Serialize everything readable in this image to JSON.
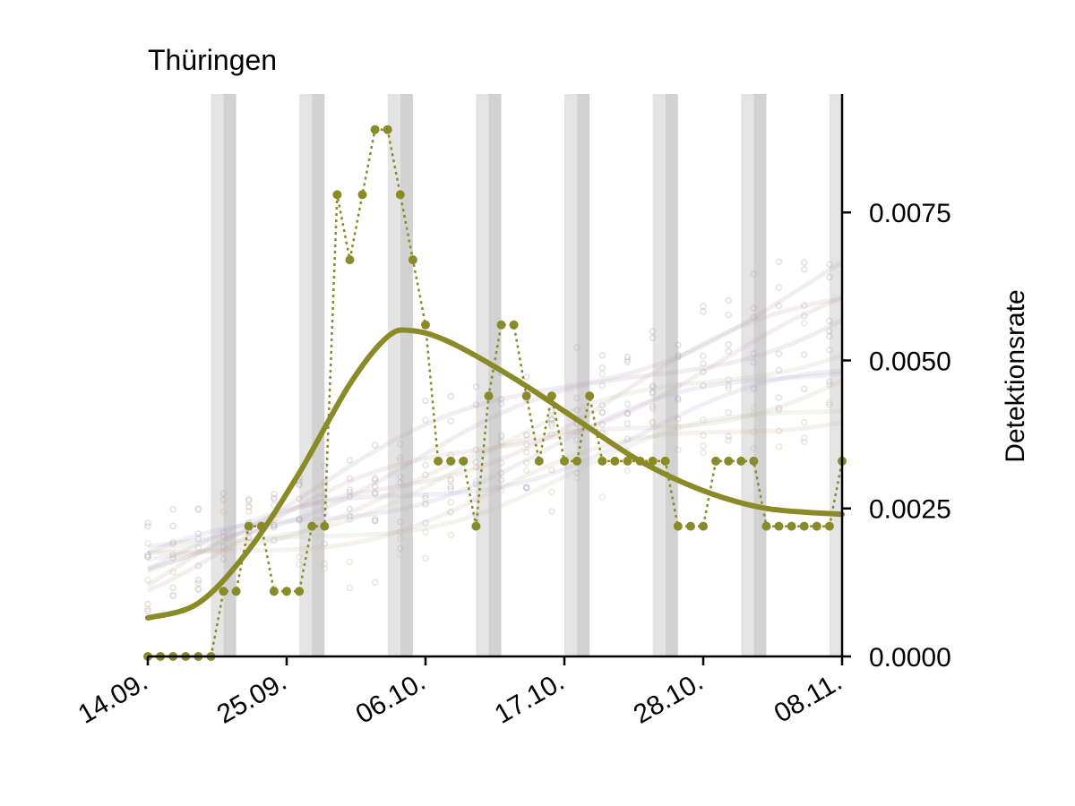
{
  "chart_data": {
    "type": "line",
    "title": "Thüringen",
    "ylabel": "Detektionsrate",
    "xlabel": "",
    "y_axis_side": "right",
    "ylim": [
      0,
      0.0095
    ],
    "y_ticks": [
      0,
      0.0025,
      0.005,
      0.0075
    ],
    "y_tick_labels": [
      "0.0000",
      "0.0025",
      "0.0050",
      "0.0075"
    ],
    "x_ticks": [
      "2020-09-14",
      "2020-09-25",
      "2020-10-06",
      "2020-10-17",
      "2020-10-28",
      "2020-11-08"
    ],
    "x_tick_labels": [
      "14.09.",
      "25.09.",
      "06.10.",
      "17.10.",
      "28.10.",
      "08.11."
    ],
    "xlim": [
      "2020-09-14",
      "2020-11-08"
    ],
    "grid": false,
    "weekend_shading": true,
    "weekend_starts": [
      "2020-09-19",
      "2020-09-26",
      "2020-10-03",
      "2020-10-10",
      "2020-10-17",
      "2020-10-24",
      "2020-10-31",
      "2020-11-07"
    ],
    "background_series_note_color": "#b0a0a8",
    "colors": {
      "main": "#8a8a28",
      "weekend_light": "#e4e4e4",
      "weekend_dark": "#d2d2d2"
    },
    "series": [
      {
        "style": "dotted-markers",
        "x": [
          "2020-09-14",
          "2020-09-15",
          "2020-09-16",
          "2020-09-17",
          "2020-09-18",
          "2020-09-19",
          "2020-09-20",
          "2020-09-21",
          "2020-09-22",
          "2020-09-23",
          "2020-09-24",
          "2020-09-25",
          "2020-09-26",
          "2020-09-27",
          "2020-09-28",
          "2020-09-29",
          "2020-09-30",
          "2020-10-01",
          "2020-10-02",
          "2020-10-03",
          "2020-10-04",
          "2020-10-05",
          "2020-10-06",
          "2020-10-07",
          "2020-10-08",
          "2020-10-09",
          "2020-10-10",
          "2020-10-11",
          "2020-10-12",
          "2020-10-13",
          "2020-10-14",
          "2020-10-15",
          "2020-10-16",
          "2020-10-17",
          "2020-10-18",
          "2020-10-19",
          "2020-10-20",
          "2020-10-21",
          "2020-10-22",
          "2020-10-23",
          "2020-10-24",
          "2020-10-25",
          "2020-10-26",
          "2020-10-27",
          "2020-10-28",
          "2020-10-29",
          "2020-10-30",
          "2020-10-31",
          "2020-11-01",
          "2020-11-02",
          "2020-11-03",
          "2020-11-04",
          "2020-11-05",
          "2020-11-06",
          "2020-11-07",
          "2020-11-08"
        ],
        "values": [
          0,
          0,
          0,
          0,
          0,
          0,
          0.0011,
          0.0011,
          0.0022,
          0.0022,
          0.0011,
          0.0011,
          0.0011,
          0.0022,
          0.0022,
          0.0078,
          0.0067,
          0.0078,
          0.0089,
          0.0089,
          0.0078,
          0.0067,
          0.0056,
          0.0033,
          0.0033,
          0.0033,
          0.0022,
          0.0044,
          0.0056,
          0.0056,
          0.0044,
          0.0033,
          0.0044,
          0.0033,
          0.0033,
          0.0044,
          0.0033,
          0.0033,
          0.0033,
          0.0033,
          0.0033,
          0.0033,
          0.0022,
          0.0022,
          0.0022,
          0.0033,
          0.0033,
          0.0033,
          0.0033,
          0.0022,
          0.0022,
          0.0022,
          0.0022,
          0.0022,
          0.0022,
          0.0033
        ]
      },
      {
        "style": "smooth-line",
        "x": [
          "2020-09-14",
          "2020-09-18",
          "2020-09-22",
          "2020-09-26",
          "2020-09-30",
          "2020-10-03",
          "2020-10-05",
          "2020-10-08",
          "2020-10-13",
          "2020-10-18",
          "2020-10-23",
          "2020-10-28",
          "2020-11-02",
          "2020-11-08"
        ],
        "values": [
          0.00065,
          0.0009,
          0.0018,
          0.0031,
          0.0046,
          0.0054,
          0.0055,
          0.0053,
          0.0047,
          0.004,
          0.0033,
          0.0028,
          0.0025,
          0.0024
        ]
      }
    ]
  }
}
